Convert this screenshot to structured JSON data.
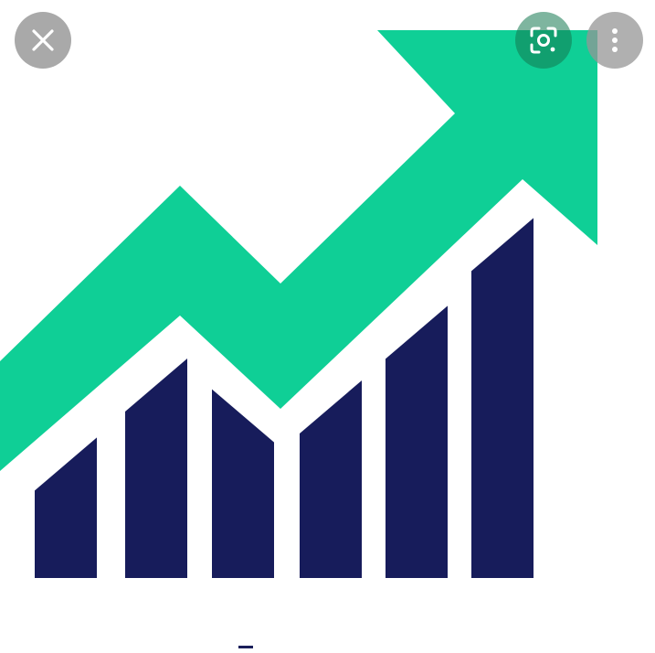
{
  "viewer": {
    "close_icon": "close-icon",
    "lens_icon": "google-lens-icon",
    "more_icon": "more-vert-icon"
  },
  "image": {
    "subject": "growth-chart-icon",
    "colors": {
      "arrow": "#0fcf96",
      "bars": "#171c5b",
      "background": "#ffffff"
    }
  },
  "chart_data": {
    "type": "bar",
    "categories": [
      "",
      "",
      "",
      "",
      "",
      ""
    ],
    "values": [
      32,
      50,
      43,
      45,
      62,
      82
    ],
    "title": "",
    "xlabel": "",
    "ylabel": "",
    "ylim": [
      0,
      100
    ],
    "legend": false,
    "grid": false
  }
}
